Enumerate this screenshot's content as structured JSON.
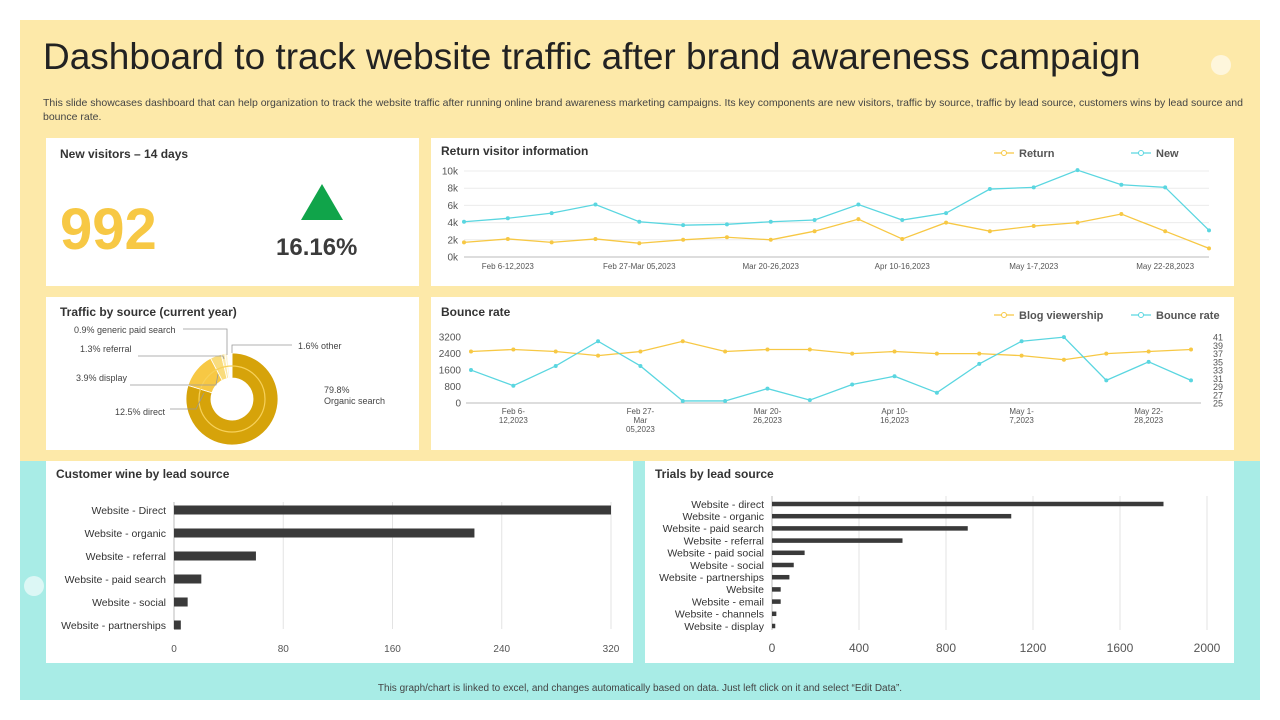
{
  "title": "Dashboard to track website traffic after brand awareness campaign",
  "description": "This slide showcases dashboard that can help organization to track the website traffic after running online brand awareness marketing campaigns. Its key components are new visitors, traffic by source, traffic by lead source, customers wins by lead source and bounce rate.",
  "footer": "This graph/chart is linked to excel, and changes automatically based on data. Just left click on it and select “Edit Data”.",
  "colors": {
    "yellow": "#f7c844",
    "gold": "#d6a30a",
    "teal": "#5ad6e0",
    "bar": "#3a3a3a",
    "green": "#10a44a",
    "top_bg": "#fde9a9",
    "bottom_bg": "#a8ece6"
  },
  "new_visitors": {
    "title": "New visitors – 14 days",
    "value": "992",
    "change": "16.16%",
    "trend_icon": "up-triangle-icon"
  },
  "chart_data": [
    {
      "id": "return_visitor",
      "type": "line",
      "title": "Return visitor information",
      "x_labels": [
        "Feb 6-12,2023",
        "Feb 27-Mar 05,2023",
        "Mar 20-26,2023",
        "Apr 10-16,2023",
        "May 1-7,2023",
        "May 22-28,2023"
      ],
      "y_ticks": [
        "0k",
        "2k",
        "4k",
        "6k",
        "8k",
        "10k"
      ],
      "ylim": [
        0,
        10000
      ],
      "legend_position": "top-right",
      "series": [
        {
          "name": "Return",
          "color": "#f7c844",
          "values": [
            1700,
            2100,
            1700,
            2100,
            1600,
            2000,
            2300,
            2000,
            3000,
            4400,
            2100,
            4000,
            3000,
            3600,
            4000,
            5000,
            3000,
            1000
          ]
        },
        {
          "name": "New",
          "color": "#5ad6e0",
          "values": [
            4100,
            4500,
            5100,
            6100,
            4100,
            3700,
            3800,
            4100,
            4300,
            6100,
            4300,
            5100,
            7900,
            8100,
            10100,
            8400,
            8100,
            3100
          ]
        }
      ]
    },
    {
      "id": "bounce_rate",
      "type": "line",
      "title": "Bounce rate",
      "x_labels": [
        [
          "Feb 6-",
          "12,2023"
        ],
        [
          "Feb 27-",
          "Mar",
          "05,2023"
        ],
        [
          "Mar 20-",
          "26,2023"
        ],
        [
          "Apr 10-",
          "16,2023"
        ],
        [
          "May 1-",
          "7,2023"
        ],
        [
          "May 22-",
          "28,2023"
        ]
      ],
      "y_left_ticks": [
        "0",
        "800",
        "1600",
        "2400",
        "3200"
      ],
      "y_right_ticks": [
        "25",
        "27",
        "29",
        "31",
        "33",
        "35",
        "37",
        "39",
        "41"
      ],
      "ylim_left": [
        0,
        3400
      ],
      "ylim_right": [
        25,
        42
      ],
      "legend_position": "top-right",
      "series": [
        {
          "name": "Blog viewership",
          "axis": "left",
          "color": "#f7c844",
          "values": [
            2500,
            2600,
            2500,
            2300,
            2500,
            3000,
            2500,
            2600,
            2600,
            2400,
            2500,
            2400,
            2400,
            2300,
            2100,
            2400,
            2500,
            2600
          ]
        },
        {
          "name": "Bounce rate",
          "axis": "right",
          "color": "#5ad6e0",
          "values": [
            33,
            29.2,
            34,
            40,
            34,
            25.5,
            25.5,
            28.5,
            25.7,
            29.5,
            31.5,
            27.5,
            34.5,
            40,
            41,
            30.5,
            35,
            30.5
          ]
        }
      ]
    },
    {
      "id": "traffic_by_source",
      "type": "pie",
      "title": "Traffic by source (current year)",
      "slices": [
        {
          "label": "79.8%\nOrganic search",
          "value": 79.8,
          "color": "#d6a30a"
        },
        {
          "label": "12.5% direct",
          "value": 12.5,
          "color": "#f7c844"
        },
        {
          "label": "3.9% display",
          "value": 3.9,
          "color": "#f9dc7c"
        },
        {
          "label": "1.3% referral",
          "value": 1.3,
          "color": "#fbe9a8"
        },
        {
          "label": "0.9% generic paid search",
          "value": 0.9,
          "color": "#fdf3cf"
        },
        {
          "label": "1.6% other",
          "value": 1.6,
          "color": "#ffffff"
        }
      ]
    },
    {
      "id": "customer_wins",
      "type": "bar",
      "title": "Customer wine by lead source",
      "categories": [
        "Website -  Direct",
        "Website -  organic",
        "Website -  referral",
        "Website -  paid search",
        "Website -  social",
        "Website -  partnerships"
      ],
      "values": [
        320,
        220,
        60,
        20,
        10,
        5
      ],
      "x_ticks": [
        "0",
        "80",
        "160",
        "240",
        "320"
      ],
      "xlim": [
        0,
        320
      ]
    },
    {
      "id": "trials",
      "type": "bar",
      "title": "Trials by lead source",
      "categories": [
        "Website -  direct",
        "Website -  organic",
        "Website -  paid search",
        "Website -  referral",
        "Website -  paid social",
        "Website -  social",
        "Website -  partnerships",
        "Website",
        "Website -  email",
        "Website -  channels",
        "Website -  display"
      ],
      "values": [
        1800,
        1100,
        900,
        600,
        150,
        100,
        80,
        40,
        40,
        20,
        15
      ],
      "x_ticks": [
        "0",
        "400",
        "800",
        "1200",
        "1600",
        "2000"
      ],
      "xlim": [
        0,
        2000
      ]
    }
  ]
}
